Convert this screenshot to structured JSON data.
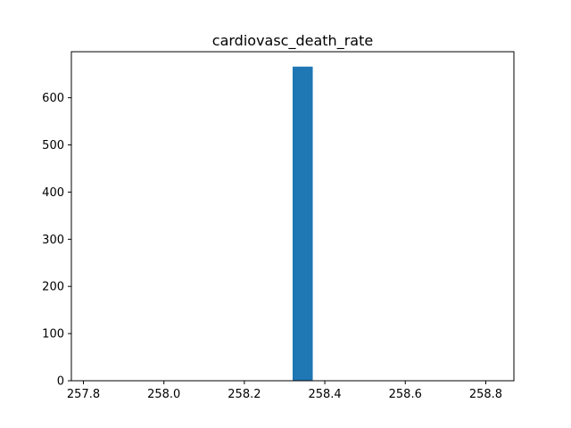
{
  "chart_data": {
    "type": "bar",
    "title": "cardiovasc_death_rate",
    "xlabel": "",
    "ylabel": "",
    "xlim": [
      257.77,
      258.87
    ],
    "ylim": [
      0,
      697.6
    ],
    "bars": [
      {
        "x0": 258.32,
        "x1": 258.37,
        "value": 666
      }
    ],
    "xticks": [
      {
        "value": 257.8,
        "label": "257.8"
      },
      {
        "value": 258.0,
        "label": "258.0"
      },
      {
        "value": 258.2,
        "label": "258.2"
      },
      {
        "value": 258.4,
        "label": "258.4"
      },
      {
        "value": 258.6,
        "label": "258.6"
      },
      {
        "value": 258.8,
        "label": "258.8"
      }
    ],
    "yticks": [
      {
        "value": 0,
        "label": "0"
      },
      {
        "value": 100,
        "label": "100"
      },
      {
        "value": 200,
        "label": "200"
      },
      {
        "value": 300,
        "label": "300"
      },
      {
        "value": 400,
        "label": "400"
      },
      {
        "value": 500,
        "label": "500"
      },
      {
        "value": 600,
        "label": "600"
      }
    ],
    "bar_color": "#1f77b4",
    "grid": false,
    "legend": "none"
  }
}
